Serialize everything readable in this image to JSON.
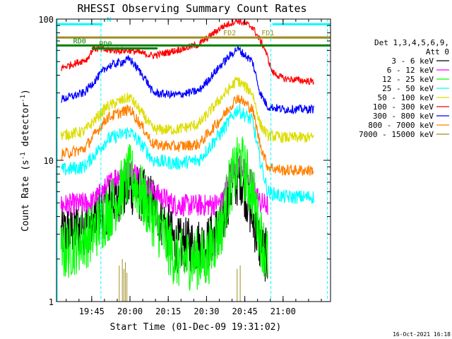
{
  "chart_data": {
    "type": "line",
    "title": "RHESSI Observing Summary Count Rates",
    "xlabel": "Start Time (01-Dec-09 19:31:02)",
    "ylabel": "Count Rate (s⁻¹ detector⁻¹)",
    "ylabel_main": "Count Rate (s",
    "ylabel_sup1": "-1",
    "ylabel_mid": " detector",
    "ylabel_sup2": "-1",
    "ylabel_end": ")",
    "yscale": "log",
    "ylim": [
      1,
      100
    ],
    "xlim": [
      19.52,
      21.31
    ],
    "x_ticks": [
      {
        "value": 19.75,
        "label": "19:45"
      },
      {
        "value": 20.0,
        "label": "20:00"
      },
      {
        "value": 20.25,
        "label": "20:15"
      },
      {
        "value": 20.5,
        "label": "20:30"
      },
      {
        "value": 20.75,
        "label": "20:45"
      },
      {
        "value": 21.0,
        "label": "21:00"
      }
    ],
    "y_ticks": [
      {
        "value": 1,
        "label": "1"
      },
      {
        "value": 10,
        "label": "10"
      },
      {
        "value": 100,
        "label": "100"
      }
    ],
    "legend": {
      "placement": "right",
      "header": [
        "Det 1,3,4,5,6,9,",
        "Att 0"
      ]
    },
    "series": [
      {
        "name": "3 - 6 keV",
        "color": "#000000",
        "x": [
          19.55,
          19.75,
          19.9,
          20.0,
          20.15,
          20.3,
          20.5,
          20.6,
          20.65,
          20.72,
          20.8,
          20.85,
          20.9
        ],
        "y": [
          3,
          3.5,
          5.5,
          6.5,
          5,
          2.5,
          2.5,
          3.5,
          6,
          8,
          4,
          2.5,
          2
        ],
        "noise": 0.2
      },
      {
        "name": "6 - 12 keV",
        "color": "#ff00ff",
        "x": [
          19.55,
          19.75,
          19.9,
          20.0,
          20.15,
          20.3,
          20.5,
          20.6,
          20.65,
          20.72,
          20.8,
          20.85,
          20.9
        ],
        "y": [
          4.8,
          5,
          7.5,
          9,
          6,
          4.8,
          4.8,
          5,
          8,
          9.5,
          7,
          5,
          4.8
        ],
        "noise": 0.08
      },
      {
        "name": "12 - 25 keV",
        "color": "#00ff00",
        "x": [
          19.55,
          19.75,
          19.9,
          20.0,
          20.15,
          20.3,
          20.5,
          20.6,
          20.65,
          20.72,
          20.8,
          20.85,
          20.9
        ],
        "y": [
          2.2,
          3,
          5,
          8,
          4,
          2,
          2,
          3.5,
          6.5,
          10,
          6,
          3,
          2
        ],
        "noise": 0.22
      },
      {
        "name": "25 - 50 keV",
        "color": "#00ffff",
        "x": [
          19.55,
          19.7,
          19.85,
          20.0,
          20.1,
          20.15,
          20.3,
          20.45,
          20.6,
          20.7,
          20.8,
          20.85,
          20.9,
          21.0,
          21.2
        ],
        "y": [
          8.5,
          9,
          14,
          16,
          12,
          10,
          9.5,
          10,
          16,
          23,
          19,
          10,
          6,
          5.5,
          5.5
        ],
        "noise": 0.05
      },
      {
        "name": "50 - 100 keV",
        "color": "#dddd00",
        "x": [
          19.55,
          19.7,
          19.85,
          20.0,
          20.1,
          20.15,
          20.3,
          20.45,
          20.6,
          20.7,
          20.8,
          20.85,
          20.9,
          21.0,
          21.2
        ],
        "y": [
          15,
          16,
          24,
          28,
          20,
          16.5,
          16.5,
          18,
          28,
          37,
          30,
          18,
          15,
          14.5,
          14.5
        ],
        "noise": 0.04
      },
      {
        "name": "100 - 300 keV",
        "color": "#ff0000",
        "x": [
          19.55,
          19.72,
          19.76,
          19.85,
          20.0,
          20.15,
          20.3,
          20.45,
          20.6,
          20.7,
          20.8,
          20.88,
          20.93,
          21.0,
          21.2
        ],
        "y": [
          45,
          52,
          62,
          60,
          60,
          55,
          60,
          66,
          88,
          98,
          88,
          62,
          42,
          38,
          36
        ],
        "noise": 0.025
      },
      {
        "name": "300 - 800 keV",
        "color": "#0000ff",
        "x": [
          19.55,
          19.7,
          19.85,
          20.0,
          20.1,
          20.15,
          20.3,
          20.45,
          20.6,
          20.7,
          20.8,
          20.85,
          20.9,
          21.0,
          21.2
        ],
        "y": [
          27,
          30,
          46,
          52,
          38,
          30,
          29,
          31,
          48,
          62,
          50,
          30,
          24,
          23,
          23
        ],
        "noise": 0.03
      },
      {
        "name": "800 - 7000 keV",
        "color": "#ff8000",
        "x": [
          19.55,
          19.7,
          19.85,
          20.0,
          20.1,
          20.15,
          20.3,
          20.45,
          20.6,
          20.7,
          20.8,
          20.85,
          20.9,
          21.0,
          21.2
        ],
        "y": [
          11,
          12,
          20,
          23,
          16,
          13,
          12.5,
          13,
          20,
          28,
          23,
          13,
          9,
          8.5,
          8.5
        ],
        "noise": 0.04
      },
      {
        "name": "7000 - 15000 keV",
        "color": "#9e8d20",
        "x": [
          19.93,
          19.95,
          19.96,
          19.97,
          19.98,
          20.7,
          20.72
        ],
        "y": [
          1.8,
          2.0,
          1.7,
          1.9,
          1.6,
          1.7,
          1.8
        ],
        "spikes": true
      }
    ],
    "annotations": {
      "bars": [
        {
          "label": "N",
          "color": "#00ffff",
          "x_start": 19.52,
          "x_end": 19.82,
          "y": 92,
          "label_x": 19.84
        },
        {
          "label": "",
          "color": "#00ffff",
          "x_start": 20.93,
          "x_end": 21.31,
          "y": 92,
          "label_x": 20.93
        },
        {
          "label": "FD2",
          "color": "#9e8d20",
          "x_start": 19.52,
          "x_end": 21.31,
          "y": 74,
          "label_x": 20.6
        },
        {
          "label": "FD1",
          "color": "#9e8d20",
          "x_start": 20.93,
          "x_end": 21.31,
          "y": 74,
          "label_x": 20.85
        },
        {
          "label": "RD0",
          "color": "#008000",
          "x_start": 19.52,
          "x_end": 21.31,
          "y": 65,
          "label_x": 19.62
        },
        {
          "label": "RD0",
          "color": "#008000",
          "x_start": 19.75,
          "x_end": 20.18,
          "y": 62,
          "label_x": 19.79
        }
      ],
      "dashed_lines": [
        {
          "color": "#00ffff",
          "x": 19.81
        },
        {
          "color": "#00ffff",
          "x": 20.92
        },
        {
          "color": "#00ffff",
          "x": 21.29
        }
      ]
    },
    "timestamp": "16-Oct-2021 16:18"
  }
}
